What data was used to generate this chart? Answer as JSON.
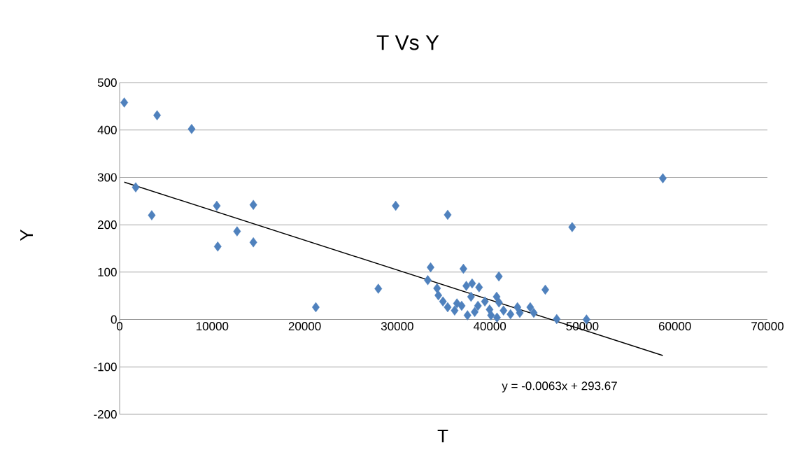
{
  "chart_data": {
    "type": "scatter",
    "title": "T Vs Y",
    "xlabel": "T",
    "ylabel": "Y",
    "annotations": [
      "y = -0.0063x + 293.67"
    ],
    "xlim": [
      0,
      70000
    ],
    "xticks": [
      0,
      10000,
      20000,
      30000,
      40000,
      50000,
      60000,
      70000
    ],
    "ylim": [
      -200,
      500
    ],
    "yticks": [
      -200,
      -100,
      0,
      100,
      200,
      300,
      400,
      500
    ],
    "grid": "y",
    "marker": "diamond",
    "series": [
      {
        "color": "#4f81bd",
        "x": [
          500,
          4050,
          7780,
          1740,
          3470,
          10500,
          14450,
          12690,
          10600,
          14450,
          21200,
          27950,
          29830,
          35450,
          58700,
          48900,
          33600,
          37150,
          40980,
          46000,
          47230,
          50450,
          33300,
          34300,
          34440,
          34940,
          35450,
          36200,
          37460,
          38090,
          38840,
          37590,
          36960,
          37970,
          38720,
          39470,
          39980,
          40740,
          40990,
          40780,
          41480,
          42240,
          42990,
          43240,
          44370,
          44750,
          36450,
          38370,
          40130
        ],
        "values": [
          458,
          431,
          402,
          279,
          220,
          240,
          242,
          186,
          154,
          163,
          26,
          65,
          240,
          221,
          298,
          195,
          110,
          107,
          91,
          63,
          1,
          0,
          83,
          66,
          51,
          38,
          26,
          19,
          71,
          76,
          68,
          9,
          29,
          48,
          29,
          38,
          21,
          48,
          36,
          4,
          19,
          11,
          26,
          14,
          26,
          14,
          34,
          16,
          9
        ]
      },
      {
        "type": "line",
        "color": "#000000",
        "marker": "none",
        "x": [
          500,
          58700
        ],
        "values": [
          290,
          -76
        ]
      }
    ]
  }
}
